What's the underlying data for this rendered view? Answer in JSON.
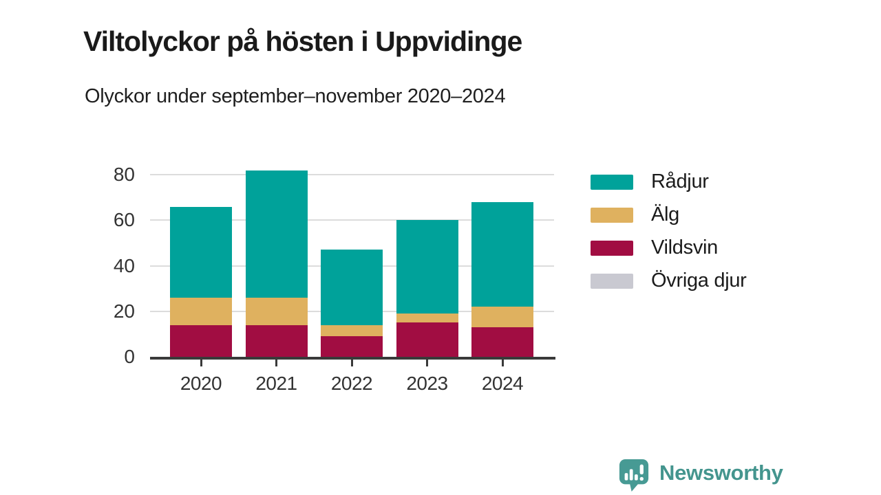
{
  "header": {
    "title": "Viltolyckor på hösten i Uppvidinge",
    "subtitle": "Olyckor under september–november 2020–2024"
  },
  "chart_data": {
    "type": "bar",
    "stacked": true,
    "title": "Viltolyckor på hösten i Uppvidinge",
    "subtitle": "Olyckor under september–november 2020–2024",
    "categories": [
      "2020",
      "2021",
      "2022",
      "2023",
      "2024"
    ],
    "series": [
      {
        "name": "Rådjur",
        "color": "#00A29A",
        "values": [
          40,
          56,
          33,
          41,
          46
        ]
      },
      {
        "name": "Älg",
        "color": "#DFB15F",
        "values": [
          12,
          12,
          5,
          4,
          9
        ]
      },
      {
        "name": "Vildsvin",
        "color": "#A10D42",
        "values": [
          14,
          14,
          9,
          15,
          13
        ]
      },
      {
        "name": "Övriga djur",
        "color": "#C9C9D1",
        "values": [
          0,
          0,
          0,
          0,
          0
        ]
      }
    ],
    "totals": [
      66,
      82,
      47,
      60,
      68
    ],
    "stack_order_bottom_to_top": [
      "Övriga djur",
      "Vildsvin",
      "Älg",
      "Rådjur"
    ],
    "xlabel": "",
    "ylabel": "",
    "ylim": [
      0,
      86
    ],
    "yticks": [
      0,
      20,
      40,
      60,
      80
    ],
    "grid": "horizontal",
    "legend_position": "right"
  },
  "footer": {
    "brand": "Newsworthy",
    "brand_color": "#44958E",
    "logo_icon": "speech-bubble-bar-chart-icon"
  }
}
